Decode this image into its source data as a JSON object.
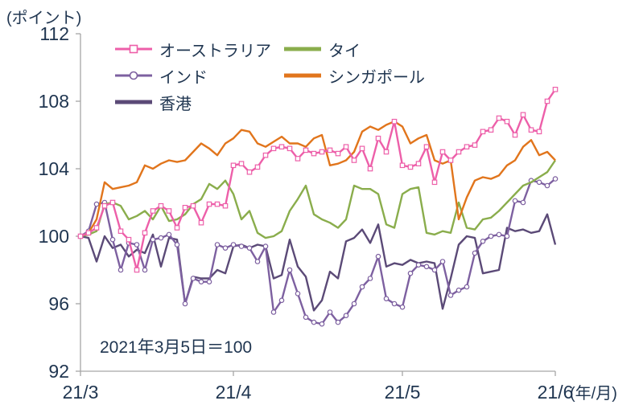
{
  "chart_data": {
    "type": "line",
    "title": "",
    "y_axis_title": "(ポイント)",
    "x_axis_title": "(年/月)",
    "annotation": "2021年3月5日＝100",
    "ylim": [
      92,
      112
    ],
    "yticks": [
      112,
      108,
      104,
      100,
      96,
      92
    ],
    "xticks": [
      {
        "label": "21/3",
        "index": 0
      },
      {
        "label": "21/4",
        "index": 19
      },
      {
        "label": "21/5",
        "index": 40
      },
      {
        "label": "21/6",
        "index": 59
      }
    ],
    "grid": false,
    "legend_position": "top-inside",
    "axis_color": "#a6a6a6",
    "text_color": "#1f3550",
    "series": [
      {
        "name": "オーストラリア",
        "color": "#ed5fa9",
        "marker": "square",
        "values": [
          100,
          100.2,
          100.5,
          101.8,
          102,
          100.3,
          99.8,
          98,
          100.2,
          101.5,
          101.8,
          101.5,
          100.5,
          101.7,
          101.8,
          100.8,
          101.9,
          101.9,
          101.8,
          104.2,
          104.3,
          103.8,
          104.1,
          104.8,
          105.2,
          105.3,
          105.2,
          104.6,
          105.1,
          104.9,
          105,
          105.1,
          104.9,
          105.3,
          104.5,
          105.2,
          104,
          105.8,
          105,
          106.8,
          104.2,
          104.1,
          104.3,
          105.3,
          103.2,
          105,
          104.5,
          105,
          105.3,
          105.4,
          106.2,
          106.3,
          107,
          106.8,
          106,
          107.2,
          106.3,
          106.2,
          108,
          108.7
        ]
      },
      {
        "name": "タイ",
        "color": "#8aad4c",
        "marker": "none",
        "values": [
          100,
          100.1,
          100.3,
          101.9,
          102,
          101.8,
          101,
          101.2,
          101.5,
          101,
          101.8,
          100.9,
          101,
          101.3,
          101.9,
          102.2,
          103.1,
          102.8,
          103.3,
          102.5,
          101,
          101.5,
          100.2,
          99.9,
          100,
          100.3,
          101.5,
          102.2,
          103,
          101.3,
          101,
          100.8,
          100.5,
          101,
          103,
          102.8,
          102.8,
          102.5,
          100.7,
          100.5,
          102.5,
          102.8,
          102.9,
          100.2,
          100.1,
          100.3,
          100.2,
          102,
          100.5,
          100.4,
          101,
          101.1,
          101.5,
          102,
          102.5,
          103,
          103.2,
          103.5,
          103.8,
          104.5
        ]
      },
      {
        "name": "インド",
        "color": "#7d60a0",
        "marker": "circle",
        "values": [
          100,
          100.3,
          101.9,
          102,
          99.8,
          98,
          99.6,
          99.5,
          98,
          99.8,
          99.9,
          100.1,
          99.5,
          96,
          97.5,
          97.3,
          97.3,
          99.5,
          99.3,
          99.5,
          99.4,
          99.3,
          98.5,
          99.4,
          95.5,
          96.2,
          98,
          96.6,
          95.2,
          94.9,
          94.8,
          95.5,
          94.9,
          95.3,
          96,
          97,
          97.5,
          98.8,
          96.3,
          96,
          95.8,
          97.8,
          98.3,
          98.2,
          98,
          98.5,
          96.5,
          96.8,
          97,
          99,
          99.7,
          100,
          100.1,
          100,
          102.1,
          102,
          103.3,
          103.2,
          103,
          103.4
        ]
      },
      {
        "name": "シンガポール",
        "color": "#e1751c",
        "marker": "none",
        "values": [
          100,
          100.2,
          101,
          103.2,
          102.8,
          102.9,
          103,
          103.2,
          104.2,
          104,
          104.3,
          104.5,
          104.4,
          104.5,
          105,
          105.5,
          105.2,
          104.8,
          105.5,
          105.8,
          106.3,
          106.2,
          105.5,
          105.3,
          105.6,
          105.9,
          105.5,
          105.5,
          105.3,
          105.8,
          106,
          104.2,
          104.3,
          104.5,
          105,
          106.2,
          106.5,
          106.3,
          106.6,
          106.8,
          106.5,
          105.5,
          105.8,
          106,
          104.5,
          104.3,
          104.5,
          101,
          102.3,
          103.3,
          103.5,
          103.4,
          103.6,
          104.2,
          104.5,
          105.3,
          105.7,
          104.8,
          105,
          104.5
        ]
      },
      {
        "name": "香港",
        "color": "#5b4a77",
        "marker": "none",
        "values": [
          100,
          99.9,
          98.5,
          100,
          99.3,
          99.5,
          98.8,
          99.2,
          99,
          100.1,
          98.2,
          99.9,
          99.8,
          96,
          97.6,
          97.5,
          97.5,
          98,
          97.8,
          99.4,
          99.5,
          99.3,
          99.5,
          99.4,
          97.5,
          97.7,
          99.8,
          98.2,
          97.6,
          95.6,
          96.2,
          97.9,
          97.5,
          99.7,
          99.9,
          100.4,
          99.6,
          100.7,
          98.2,
          98.4,
          98.3,
          98.6,
          98.4,
          98.5,
          98.4,
          95.7,
          97.5,
          99.5,
          100,
          99.9,
          97.8,
          97.9,
          98,
          100.5,
          100.3,
          100.4,
          100.2,
          100.3,
          101.3,
          99.5
        ]
      }
    ]
  }
}
